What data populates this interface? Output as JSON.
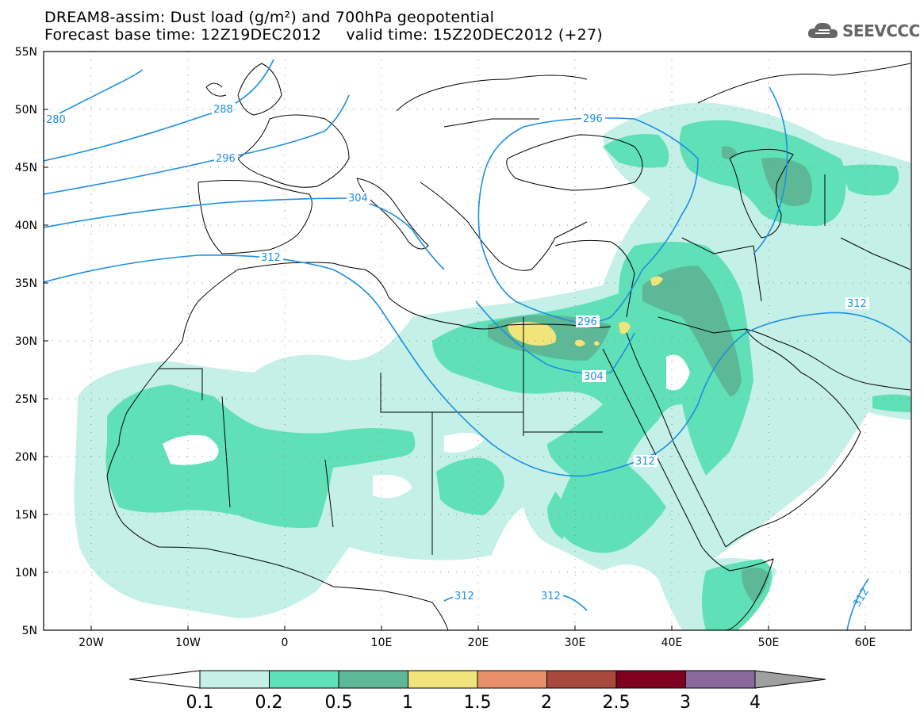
{
  "title": {
    "line1": "DREAM8-assim: Dust load (g/m²) and 700hPa geopotential",
    "line2": "Forecast base time: 12Z19DEC2012     valid time: 15Z20DEC2012 (+27)"
  },
  "logo": {
    "text": "SEEVCCC",
    "icon": "cloud-icon"
  },
  "map": {
    "lat_labels": [
      "55N",
      "50N",
      "45N",
      "40N",
      "35N",
      "30N",
      "25N",
      "20N",
      "15N",
      "10N",
      "5N"
    ],
    "lon_labels": [
      "20W",
      "10W",
      "0",
      "10E",
      "20E",
      "30E",
      "40E",
      "50E",
      "60E"
    ],
    "contour_labels": [
      "280",
      "288",
      "296",
      "296",
      "304",
      "312",
      "296",
      "304",
      "312",
      "312",
      "312",
      "312",
      "312"
    ]
  },
  "colorbar": {
    "labels": [
      "0.1",
      "0.2",
      "0.5",
      "1",
      "1.5",
      "2",
      "2.5",
      "3",
      "4"
    ],
    "colors": [
      "#c4f0e8",
      "#5fe0b6",
      "#5cb896",
      "#f1e47a",
      "#e8906a",
      "#a8493e",
      "#800020",
      "#8a6a9c"
    ],
    "overflow_colors": {
      "low": "#ffffff",
      "high": "#a0a0a0"
    }
  },
  "colors": {
    "contour": "#1e8fe0",
    "coast": "#000000"
  }
}
